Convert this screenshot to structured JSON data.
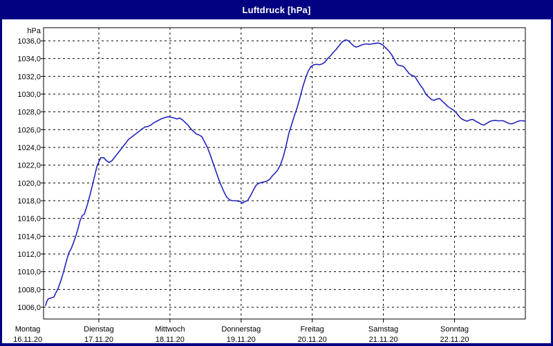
{
  "window": {
    "title": "Luftdruck [hPa]"
  },
  "colors": {
    "titlebar": "#000080",
    "frame": "#000080",
    "background": "#ffffff",
    "grid": "#000000",
    "axis": "#000000",
    "line": "#2222bb",
    "text": "#000000",
    "title_text": "#ffffff"
  },
  "chart_data": {
    "type": "line",
    "title": "Luftdruck [hPa]",
    "unit_label": "hPa",
    "ylabel": "hPa",
    "xlabel": "",
    "ylim": [
      1004.5,
      1037.5
    ],
    "y_tick_values": [
      1036,
      1034,
      1032,
      1030,
      1028,
      1026,
      1024,
      1022,
      1020,
      1018,
      1016,
      1014,
      1012,
      1010,
      1008,
      1006
    ],
    "y_tick_labels": [
      "1036,0",
      "1034,0",
      "1032,0",
      "1030,0",
      "1028,0",
      "1026,0",
      "1024,0",
      "1022,0",
      "1020,0",
      "1018,0",
      "1016,0",
      "1014,0",
      "1012,0",
      "1010,0",
      "1008,0",
      "1006,0"
    ],
    "x_ticks": [
      {
        "day": "Montag",
        "date": "16.11.20",
        "t": 0,
        "gridline": false
      },
      {
        "day": "Dienstag",
        "date": "17.11.20",
        "t": 1,
        "gridline": true
      },
      {
        "day": "Mittwoch",
        "date": "18.11.20",
        "t": 2,
        "gridline": true
      },
      {
        "day": "Donnerstag",
        "date": "19.11.20",
        "t": 3,
        "gridline": true
      },
      {
        "day": "Freitag",
        "date": "20.11.20",
        "t": 4,
        "gridline": true
      },
      {
        "day": "Samstag",
        "date": "21.11.20",
        "t": 5,
        "gridline": true
      },
      {
        "day": "Sonntag",
        "date": "22.11.20",
        "t": 6,
        "gridline": true
      }
    ],
    "x_range_days": [
      0.2226,
      6.996
    ],
    "grid": "dashed",
    "legend": "none",
    "series": [
      {
        "name": "Luftdruck",
        "unit": "hPa",
        "points": [
          [
            0.252,
            1006.2
          ],
          [
            0.271,
            1006.7
          ],
          [
            0.291,
            1006.95
          ],
          [
            0.329,
            1007.05
          ],
          [
            0.368,
            1007.15
          ],
          [
            0.388,
            1007.5
          ],
          [
            0.427,
            1008.1
          ],
          [
            0.466,
            1009.0
          ],
          [
            0.504,
            1010.0
          ],
          [
            0.543,
            1011.2
          ],
          [
            0.582,
            1012.2
          ],
          [
            0.611,
            1012.6
          ],
          [
            0.64,
            1013.2
          ],
          [
            0.679,
            1014.1
          ],
          [
            0.708,
            1014.9
          ],
          [
            0.738,
            1015.8
          ],
          [
            0.767,
            1016.3
          ],
          [
            0.796,
            1016.5
          ],
          [
            0.825,
            1017.2
          ],
          [
            0.854,
            1018.0
          ],
          [
            0.883,
            1018.9
          ],
          [
            0.912,
            1019.8
          ],
          [
            0.942,
            1020.8
          ],
          [
            0.971,
            1021.8
          ],
          [
            1.0,
            1022.4
          ],
          [
            1.029,
            1022.85
          ],
          [
            1.068,
            1022.85
          ],
          [
            1.107,
            1022.5
          ],
          [
            1.146,
            1022.3
          ],
          [
            1.185,
            1022.5
          ],
          [
            1.224,
            1022.9
          ],
          [
            1.272,
            1023.4
          ],
          [
            1.321,
            1023.9
          ],
          [
            1.369,
            1024.4
          ],
          [
            1.418,
            1024.9
          ],
          [
            1.466,
            1025.2
          ],
          [
            1.515,
            1025.5
          ],
          [
            1.564,
            1025.8
          ],
          [
            1.612,
            1026.1
          ],
          [
            1.651,
            1026.3
          ],
          [
            1.69,
            1026.35
          ],
          [
            1.729,
            1026.5
          ],
          [
            1.777,
            1026.8
          ],
          [
            1.826,
            1027.0
          ],
          [
            1.875,
            1027.2
          ],
          [
            1.923,
            1027.35
          ],
          [
            1.972,
            1027.45
          ],
          [
            2.02,
            1027.4
          ],
          [
            2.059,
            1027.3
          ],
          [
            2.098,
            1027.2
          ],
          [
            2.137,
            1027.3
          ],
          [
            2.176,
            1027.1
          ],
          [
            2.215,
            1026.8
          ],
          [
            2.254,
            1026.5
          ],
          [
            2.292,
            1026.1
          ],
          [
            2.331,
            1025.8
          ],
          [
            2.37,
            1025.5
          ],
          [
            2.409,
            1025.4
          ],
          [
            2.448,
            1025.2
          ],
          [
            2.487,
            1024.6
          ],
          [
            2.526,
            1024.0
          ],
          [
            2.565,
            1023.2
          ],
          [
            2.603,
            1022.3
          ],
          [
            2.642,
            1021.4
          ],
          [
            2.681,
            1020.5
          ],
          [
            2.72,
            1019.7
          ],
          [
            2.759,
            1019.0
          ],
          [
            2.798,
            1018.4
          ],
          [
            2.837,
            1018.1
          ],
          [
            2.875,
            1018.0
          ],
          [
            2.914,
            1018.0
          ],
          [
            2.953,
            1017.95
          ],
          [
            2.992,
            1017.9
          ],
          [
            3.021,
            1017.7
          ],
          [
            3.05,
            1017.9
          ],
          [
            3.089,
            1018.0
          ],
          [
            3.128,
            1018.5
          ],
          [
            3.167,
            1019.1
          ],
          [
            3.206,
            1019.7
          ],
          [
            3.245,
            1019.95
          ],
          [
            3.284,
            1020.05
          ],
          [
            3.322,
            1020.1
          ],
          [
            3.361,
            1020.2
          ],
          [
            3.4,
            1020.4
          ],
          [
            3.439,
            1020.8
          ],
          [
            3.478,
            1021.1
          ],
          [
            3.517,
            1021.5
          ],
          [
            3.556,
            1022.1
          ],
          [
            3.595,
            1023.0
          ],
          [
            3.633,
            1024.2
          ],
          [
            3.672,
            1025.6
          ],
          [
            3.711,
            1026.6
          ],
          [
            3.75,
            1027.6
          ],
          [
            3.789,
            1028.5
          ],
          [
            3.828,
            1029.6
          ],
          [
            3.867,
            1030.8
          ],
          [
            3.906,
            1031.8
          ],
          [
            3.944,
            1032.6
          ],
          [
            3.983,
            1033.1
          ],
          [
            4.022,
            1033.3
          ],
          [
            4.061,
            1033.35
          ],
          [
            4.1,
            1033.3
          ],
          [
            4.139,
            1033.4
          ],
          [
            4.178,
            1033.6
          ],
          [
            4.217,
            1034.0
          ],
          [
            4.256,
            1034.3
          ],
          [
            4.294,
            1034.7
          ],
          [
            4.333,
            1035.0
          ],
          [
            4.372,
            1035.4
          ],
          [
            4.411,
            1035.8
          ],
          [
            4.45,
            1036.05
          ],
          [
            4.479,
            1036.1
          ],
          [
            4.508,
            1036.0
          ],
          [
            4.547,
            1035.7
          ],
          [
            4.586,
            1035.4
          ],
          [
            4.615,
            1035.3
          ],
          [
            4.644,
            1035.35
          ],
          [
            4.683,
            1035.5
          ],
          [
            4.722,
            1035.6
          ],
          [
            4.761,
            1035.65
          ],
          [
            4.8,
            1035.6
          ],
          [
            4.838,
            1035.65
          ],
          [
            4.877,
            1035.7
          ],
          [
            4.916,
            1035.75
          ],
          [
            4.955,
            1035.7
          ],
          [
            4.994,
            1035.5
          ],
          [
            5.033,
            1035.2
          ],
          [
            5.072,
            1034.9
          ],
          [
            5.111,
            1034.5
          ],
          [
            5.149,
            1034.0
          ],
          [
            5.179,
            1033.5
          ],
          [
            5.208,
            1033.25
          ],
          [
            5.247,
            1033.2
          ],
          [
            5.285,
            1033.1
          ],
          [
            5.324,
            1032.7
          ],
          [
            5.363,
            1032.3
          ],
          [
            5.402,
            1032.1
          ],
          [
            5.441,
            1032.0
          ],
          [
            5.48,
            1031.5
          ],
          [
            5.519,
            1031.0
          ],
          [
            5.558,
            1030.6
          ],
          [
            5.596,
            1030.0
          ],
          [
            5.635,
            1029.7
          ],
          [
            5.674,
            1029.4
          ],
          [
            5.713,
            1029.3
          ],
          [
            5.752,
            1029.45
          ],
          [
            5.791,
            1029.5
          ],
          [
            5.83,
            1029.2
          ],
          [
            5.869,
            1028.9
          ],
          [
            5.908,
            1028.6
          ],
          [
            5.946,
            1028.4
          ],
          [
            5.985,
            1028.2
          ],
          [
            6.024,
            1027.9
          ],
          [
            6.063,
            1027.5
          ],
          [
            6.102,
            1027.2
          ],
          [
            6.141,
            1027.05
          ],
          [
            6.18,
            1026.95
          ],
          [
            6.219,
            1027.1
          ],
          [
            6.258,
            1027.15
          ],
          [
            6.296,
            1026.95
          ],
          [
            6.335,
            1026.8
          ],
          [
            6.374,
            1026.6
          ],
          [
            6.413,
            1026.5
          ],
          [
            6.452,
            1026.7
          ],
          [
            6.491,
            1026.9
          ],
          [
            6.53,
            1027.0
          ],
          [
            6.569,
            1027.05
          ],
          [
            6.608,
            1027.0
          ],
          [
            6.646,
            1027.0
          ],
          [
            6.685,
            1027.0
          ],
          [
            6.724,
            1026.85
          ],
          [
            6.763,
            1026.7
          ],
          [
            6.802,
            1026.65
          ],
          [
            6.841,
            1026.75
          ],
          [
            6.88,
            1026.9
          ],
          [
            6.919,
            1027.0
          ],
          [
            6.957,
            1027.0
          ],
          [
            6.996,
            1026.95
          ]
        ]
      }
    ]
  }
}
